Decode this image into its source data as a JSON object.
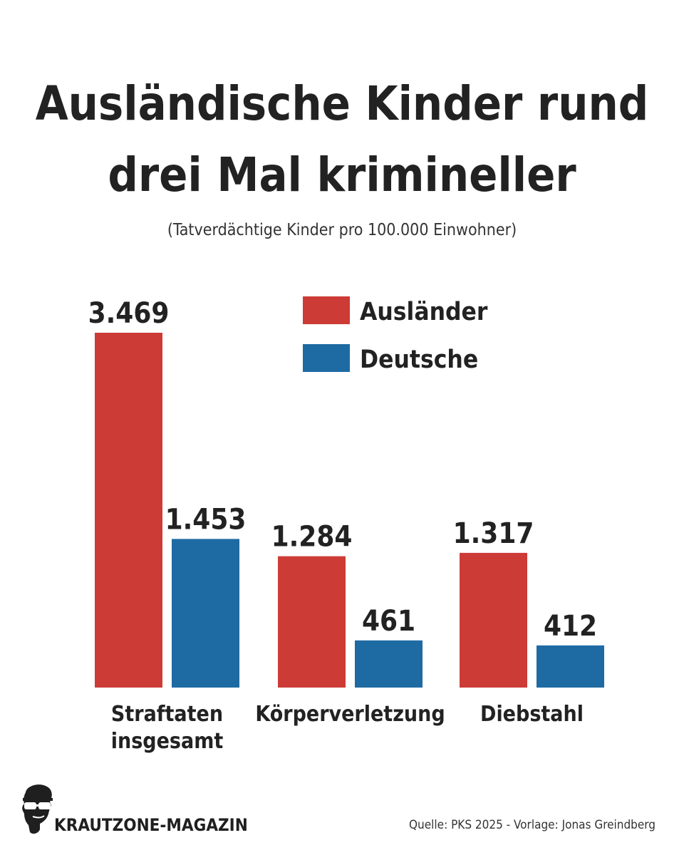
{
  "header": {
    "title_line1": "Ausländische Kinder rund",
    "title_line2": "drei Mal krimineller",
    "subtitle": "(Tatverdächtige Kinder pro 100.000 Einwohner)"
  },
  "chart_data": {
    "type": "bar",
    "categories": [
      [
        "Straftaten",
        "insgesamt"
      ],
      [
        "Körperverletzung"
      ],
      [
        "Diebstahl"
      ]
    ],
    "series": [
      {
        "name": "Ausländer",
        "values": [
          3469,
          1284,
          1317
        ],
        "labels": [
          "3.469",
          "1.284",
          "1.317"
        ],
        "color": "#cd3b36"
      },
      {
        "name": "Deutsche",
        "values": [
          1453,
          461,
          412
        ],
        "labels": [
          "1.453",
          "461",
          "412"
        ],
        "color": "#1e6aa3"
      }
    ],
    "ylim": [
      0,
      3469
    ],
    "grid": false,
    "legend": "top-right"
  },
  "footer": {
    "brand": "KRAUTZONE-MAGAZIN",
    "source": "Quelle: PKS 2025 - Vorlage: Jonas Greindberg"
  }
}
